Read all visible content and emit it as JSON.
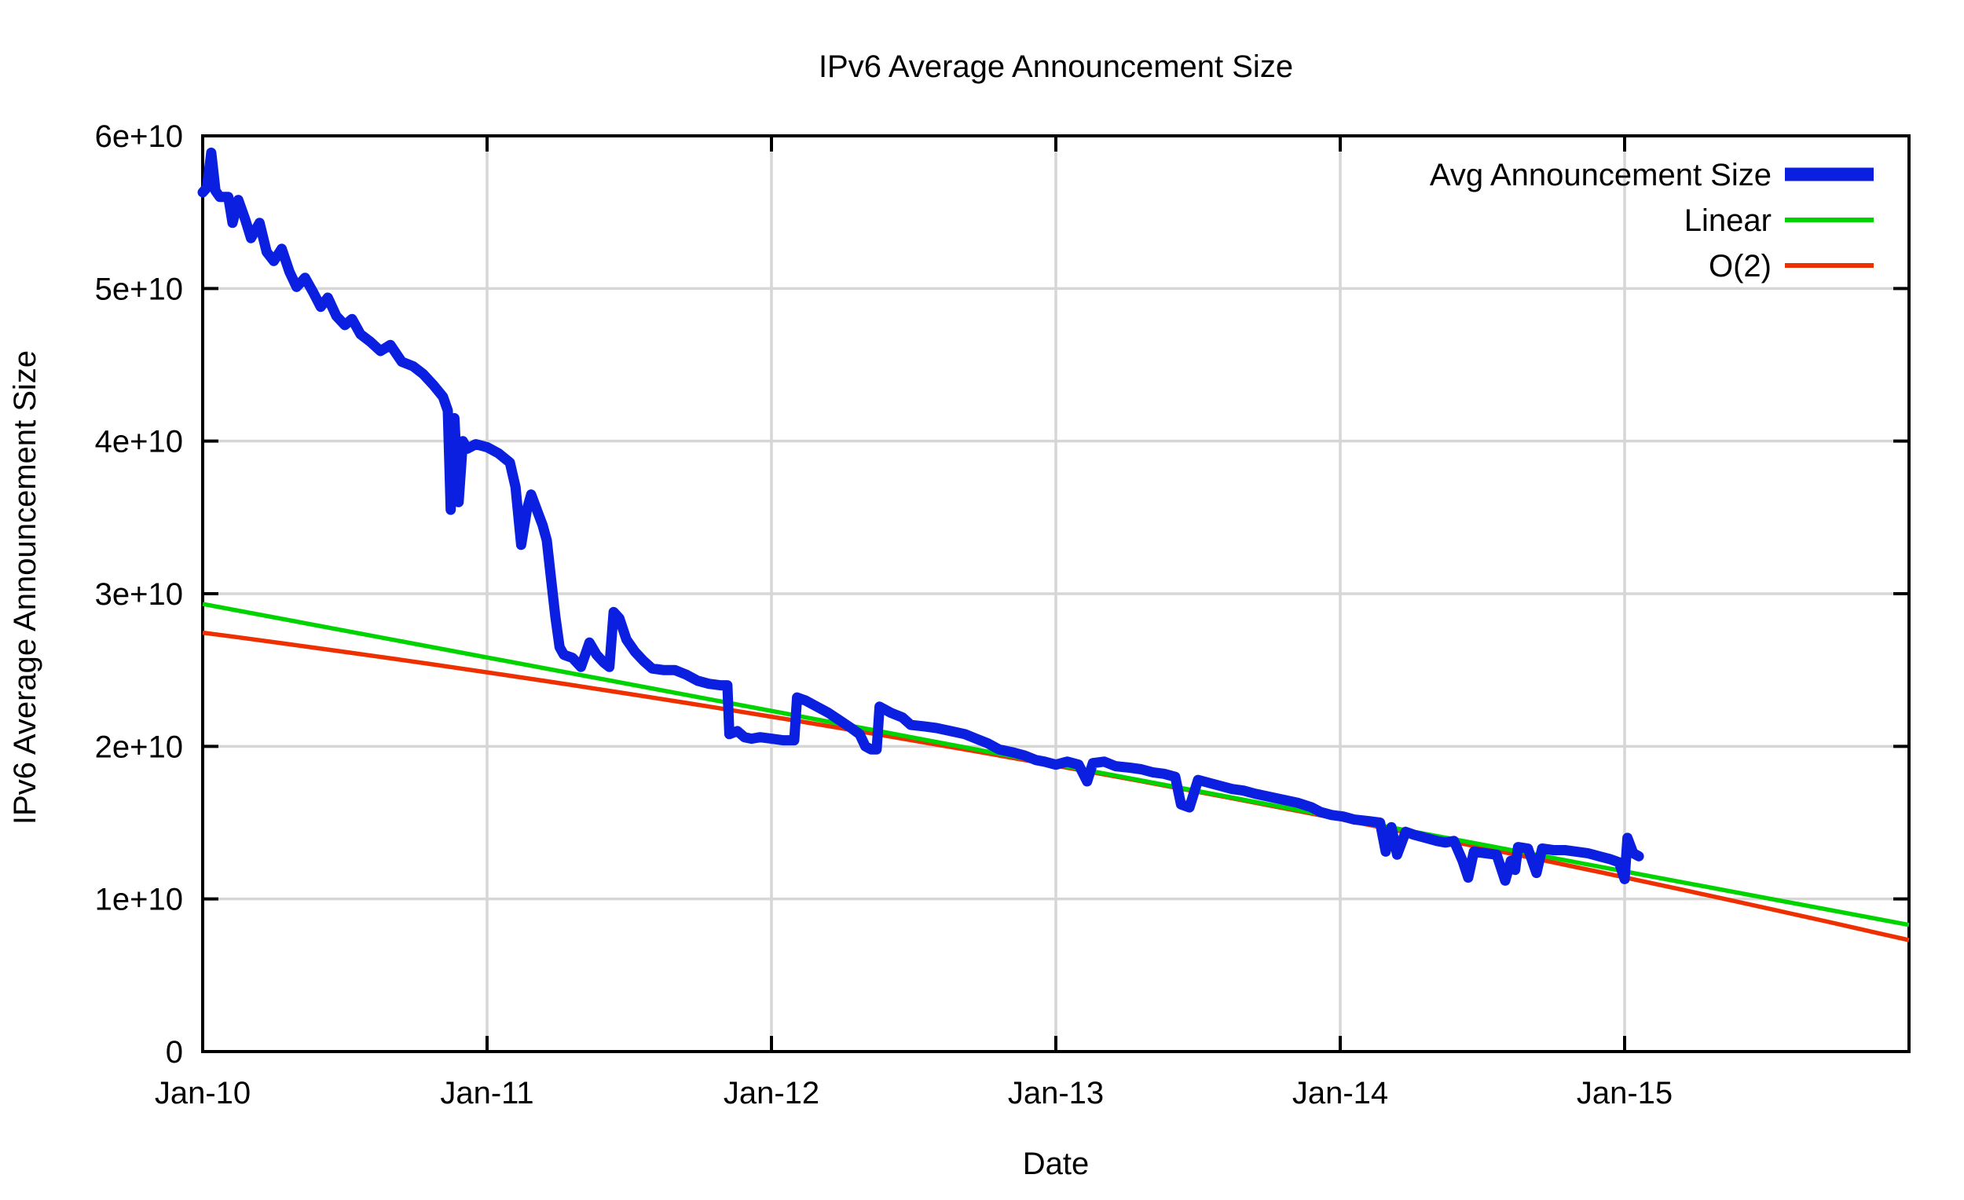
{
  "title": "IPv6 Average Announcement Size",
  "x_axis": {
    "label": "Date",
    "tick_labels": [
      "Jan-10",
      "Jan-11",
      "Jan-12",
      "Jan-13",
      "Jan-14",
      "Jan-15"
    ],
    "tick_years": [
      2010,
      2011,
      2012,
      2013,
      2014,
      2015
    ],
    "range_years": [
      2010,
      2016
    ]
  },
  "y_axis": {
    "label": "IPv6 Average Announcement Size",
    "tick_labels": [
      "0",
      "1e+10",
      "2e+10",
      "3e+10",
      "4e+10",
      "5e+10",
      "6e+10"
    ],
    "tick_values_e10": [
      0,
      1,
      2,
      3,
      4,
      5,
      6
    ],
    "range_e10": [
      0,
      6
    ]
  },
  "legend": {
    "position": "top-right",
    "entries": [
      {
        "label": "Avg Announcement Size",
        "color": "#0a1fe0",
        "thickness": 17
      },
      {
        "label": "Linear",
        "color": "#00d400",
        "thickness": 6
      },
      {
        "label": "O(2)",
        "color": "#ee3000",
        "thickness": 6
      }
    ]
  },
  "colors": {
    "background": "#ffffff",
    "plot_border": "#000000",
    "grid": "#d6d6d6",
    "avg_series": "#0a1fe0",
    "linear_series": "#00d400",
    "o2_series": "#ee3000",
    "text": "#000000"
  },
  "chart_data": {
    "type": "line",
    "title": "IPv6 Average Announcement Size",
    "xlabel": "Date",
    "ylabel": "IPv6 Average Announcement Size",
    "x_unit": "decimal_year",
    "y_unit": "1e10",
    "xlim": [
      2010,
      2016
    ],
    "ylim": [
      0,
      6
    ],
    "grid": true,
    "legend_position": "top-right",
    "series": [
      {
        "name": "Avg Announcement Size",
        "style": "data-line",
        "color": "#0a1fe0",
        "width": 13,
        "points": [
          [
            2010.0,
            5.63
          ],
          [
            2010.015,
            5.66
          ],
          [
            2010.03,
            5.89
          ],
          [
            2010.045,
            5.64
          ],
          [
            2010.06,
            5.6
          ],
          [
            2010.09,
            5.6
          ],
          [
            2010.105,
            5.43
          ],
          [
            2010.125,
            5.58
          ],
          [
            2010.15,
            5.45
          ],
          [
            2010.17,
            5.33
          ],
          [
            2010.2,
            5.43
          ],
          [
            2010.225,
            5.24
          ],
          [
            2010.25,
            5.18
          ],
          [
            2010.278,
            5.26
          ],
          [
            2010.305,
            5.11
          ],
          [
            2010.33,
            5.01
          ],
          [
            2010.36,
            5.07
          ],
          [
            2010.39,
            4.97
          ],
          [
            2010.415,
            4.88
          ],
          [
            2010.44,
            4.94
          ],
          [
            2010.47,
            4.82
          ],
          [
            2010.5,
            4.76
          ],
          [
            2010.525,
            4.8
          ],
          [
            2010.555,
            4.7
          ],
          [
            2010.59,
            4.65
          ],
          [
            2010.625,
            4.59
          ],
          [
            2010.66,
            4.63
          ],
          [
            2010.7,
            4.52
          ],
          [
            2010.74,
            4.49
          ],
          [
            2010.775,
            4.44
          ],
          [
            2010.81,
            4.37
          ],
          [
            2010.845,
            4.29
          ],
          [
            2010.862,
            4.2
          ],
          [
            2010.872,
            3.55
          ],
          [
            2010.885,
            4.15
          ],
          [
            2010.9,
            3.6
          ],
          [
            2010.915,
            4.0
          ],
          [
            2010.93,
            3.95
          ],
          [
            2010.96,
            3.98
          ],
          [
            2011.0,
            3.96
          ],
          [
            2011.04,
            3.92
          ],
          [
            2011.08,
            3.86
          ],
          [
            2011.1,
            3.7
          ],
          [
            2011.12,
            3.32
          ],
          [
            2011.14,
            3.55
          ],
          [
            2011.155,
            3.65
          ],
          [
            2011.175,
            3.55
          ],
          [
            2011.195,
            3.45
          ],
          [
            2011.21,
            3.35
          ],
          [
            2011.225,
            3.1
          ],
          [
            2011.24,
            2.85
          ],
          [
            2011.255,
            2.65
          ],
          [
            2011.27,
            2.6
          ],
          [
            2011.3,
            2.58
          ],
          [
            2011.33,
            2.52
          ],
          [
            2011.36,
            2.68
          ],
          [
            2011.385,
            2.6
          ],
          [
            2011.41,
            2.55
          ],
          [
            2011.43,
            2.52
          ],
          [
            2011.445,
            2.88
          ],
          [
            2011.465,
            2.84
          ],
          [
            2011.49,
            2.7
          ],
          [
            2011.52,
            2.62
          ],
          [
            2011.55,
            2.56
          ],
          [
            2011.58,
            2.51
          ],
          [
            2011.62,
            2.5
          ],
          [
            2011.66,
            2.5
          ],
          [
            2011.7,
            2.47
          ],
          [
            2011.74,
            2.43
          ],
          [
            2011.78,
            2.41
          ],
          [
            2011.82,
            2.4
          ],
          [
            2011.845,
            2.4
          ],
          [
            2011.852,
            2.08
          ],
          [
            2011.88,
            2.1
          ],
          [
            2011.905,
            2.06
          ],
          [
            2011.93,
            2.05
          ],
          [
            2011.96,
            2.06
          ],
          [
            2012.0,
            2.05
          ],
          [
            2012.04,
            2.04
          ],
          [
            2012.08,
            2.04
          ],
          [
            2012.09,
            2.32
          ],
          [
            2012.12,
            2.3
          ],
          [
            2012.16,
            2.26
          ],
          [
            2012.2,
            2.22
          ],
          [
            2012.24,
            2.17
          ],
          [
            2012.28,
            2.12
          ],
          [
            2012.31,
            2.08
          ],
          [
            2012.33,
            2.0
          ],
          [
            2012.35,
            1.98
          ],
          [
            2012.37,
            1.98
          ],
          [
            2012.38,
            2.26
          ],
          [
            2012.42,
            2.22
          ],
          [
            2012.46,
            2.19
          ],
          [
            2012.49,
            2.14
          ],
          [
            2012.54,
            2.13
          ],
          [
            2012.58,
            2.12
          ],
          [
            2012.63,
            2.1
          ],
          [
            2012.68,
            2.08
          ],
          [
            2012.72,
            2.05
          ],
          [
            2012.76,
            2.02
          ],
          [
            2012.8,
            1.98
          ],
          [
            2012.85,
            1.96
          ],
          [
            2012.89,
            1.94
          ],
          [
            2012.93,
            1.91
          ],
          [
            2012.96,
            1.9
          ],
          [
            2013.0,
            1.88
          ],
          [
            2013.04,
            1.9
          ],
          [
            2013.08,
            1.88
          ],
          [
            2013.11,
            1.77
          ],
          [
            2013.13,
            1.89
          ],
          [
            2013.17,
            1.9
          ],
          [
            2013.21,
            1.87
          ],
          [
            2013.26,
            1.86
          ],
          [
            2013.3,
            1.85
          ],
          [
            2013.34,
            1.83
          ],
          [
            2013.38,
            1.82
          ],
          [
            2013.42,
            1.8
          ],
          [
            2013.44,
            1.62
          ],
          [
            2013.47,
            1.6
          ],
          [
            2013.5,
            1.78
          ],
          [
            2013.54,
            1.76
          ],
          [
            2013.58,
            1.74
          ],
          [
            2013.62,
            1.72
          ],
          [
            2013.66,
            1.71
          ],
          [
            2013.7,
            1.69
          ],
          [
            2013.75,
            1.67
          ],
          [
            2013.8,
            1.65
          ],
          [
            2013.85,
            1.63
          ],
          [
            2013.9,
            1.6
          ],
          [
            2013.93,
            1.57
          ],
          [
            2013.97,
            1.55
          ],
          [
            2014.01,
            1.54
          ],
          [
            2014.05,
            1.52
          ],
          [
            2014.1,
            1.51
          ],
          [
            2014.14,
            1.5
          ],
          [
            2014.16,
            1.31
          ],
          [
            2014.18,
            1.47
          ],
          [
            2014.2,
            1.29
          ],
          [
            2014.23,
            1.44
          ],
          [
            2014.26,
            1.42
          ],
          [
            2014.3,
            1.4
          ],
          [
            2014.34,
            1.38
          ],
          [
            2014.37,
            1.37
          ],
          [
            2014.4,
            1.38
          ],
          [
            2014.43,
            1.25
          ],
          [
            2014.45,
            1.14
          ],
          [
            2014.47,
            1.31
          ],
          [
            2014.51,
            1.3
          ],
          [
            2014.55,
            1.29
          ],
          [
            2014.58,
            1.12
          ],
          [
            2014.6,
            1.25
          ],
          [
            2014.615,
            1.19
          ],
          [
            2014.625,
            1.34
          ],
          [
            2014.66,
            1.33
          ],
          [
            2014.69,
            1.17
          ],
          [
            2014.71,
            1.33
          ],
          [
            2014.75,
            1.32
          ],
          [
            2014.79,
            1.32
          ],
          [
            2014.83,
            1.31
          ],
          [
            2014.87,
            1.3
          ],
          [
            2014.91,
            1.28
          ],
          [
            2014.95,
            1.26
          ],
          [
            2014.98,
            1.24
          ],
          [
            2015.0,
            1.13
          ],
          [
            2015.01,
            1.4
          ],
          [
            2015.03,
            1.3
          ],
          [
            2015.05,
            1.28
          ]
        ]
      },
      {
        "name": "Linear",
        "style": "fit-line",
        "color": "#00d400",
        "width": 5.5,
        "model": "y(e10) = 2.933 - 0.3505 * (year - 2010)",
        "endpoints": [
          [
            2010.0,
            2.933
          ],
          [
            2016.0,
            0.83
          ]
        ]
      },
      {
        "name": "O(2)",
        "style": "fit-quadratic",
        "color": "#ee3000",
        "width": 5.5,
        "model": "y(e10) = 2.745 - 0.24512*t - 0.01512*t^2, t = year - 2010",
        "coeffs": [
          2.745,
          -0.24512,
          -0.01512
        ],
        "endpoints": [
          [
            2010.0,
            2.745
          ],
          [
            2016.0,
            0.73
          ]
        ]
      }
    ]
  }
}
